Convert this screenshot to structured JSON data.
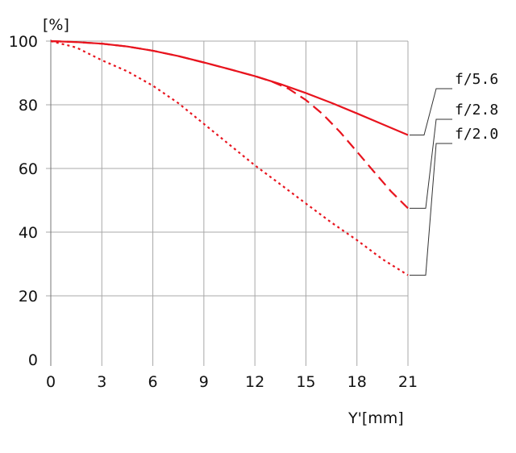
{
  "chart_data": {
    "type": "line",
    "title": "",
    "xlabel": "Y'[mm]",
    "ylabel": "[%]",
    "xlim": [
      0,
      21
    ],
    "ylim": [
      0,
      100
    ],
    "xticks": [
      "0",
      "3",
      "6",
      "9",
      "12",
      "15",
      "18",
      "21"
    ],
    "yticks": [
      "0",
      "20",
      "40",
      "60",
      "80",
      "100"
    ],
    "grid": true,
    "legend_position": "right",
    "series": [
      {
        "name": "f/5.6",
        "style": "solid",
        "color": "#e8141e",
        "x": [
          0,
          1.5,
          3,
          4.5,
          6,
          7.5,
          9,
          10.5,
          12,
          13.5,
          15,
          16.5,
          18,
          19.5,
          21
        ],
        "y": [
          100,
          99.7,
          99.2,
          98.3,
          97,
          95.3,
          93.3,
          91.2,
          89,
          86.5,
          83.7,
          80.6,
          77.3,
          73.9,
          70.5
        ]
      },
      {
        "name": "f/2.8",
        "style": "dashed",
        "color": "#e8141e",
        "x": [
          0,
          1.5,
          3,
          4.5,
          6,
          7.5,
          9,
          10.5,
          12,
          13,
          14,
          15,
          16,
          17,
          18,
          19,
          20,
          21
        ],
        "y": [
          100,
          99.7,
          99.2,
          98.3,
          97,
          95.3,
          93.3,
          91.2,
          89,
          87.3,
          85,
          81.5,
          77,
          71.5,
          65.3,
          59,
          52.8,
          47.5
        ]
      },
      {
        "name": "f/2.0",
        "style": "dotted",
        "color": "#e8141e",
        "x": [
          0,
          1.5,
          3,
          4.5,
          6,
          7.5,
          9,
          10.5,
          12,
          13.5,
          15,
          16.5,
          18,
          19.5,
          21
        ],
        "y": [
          100,
          98,
          94,
          90.5,
          86,
          80.5,
          74,
          67.5,
          61,
          55,
          49,
          43,
          37.5,
          31.5,
          26.5
        ]
      }
    ]
  }
}
